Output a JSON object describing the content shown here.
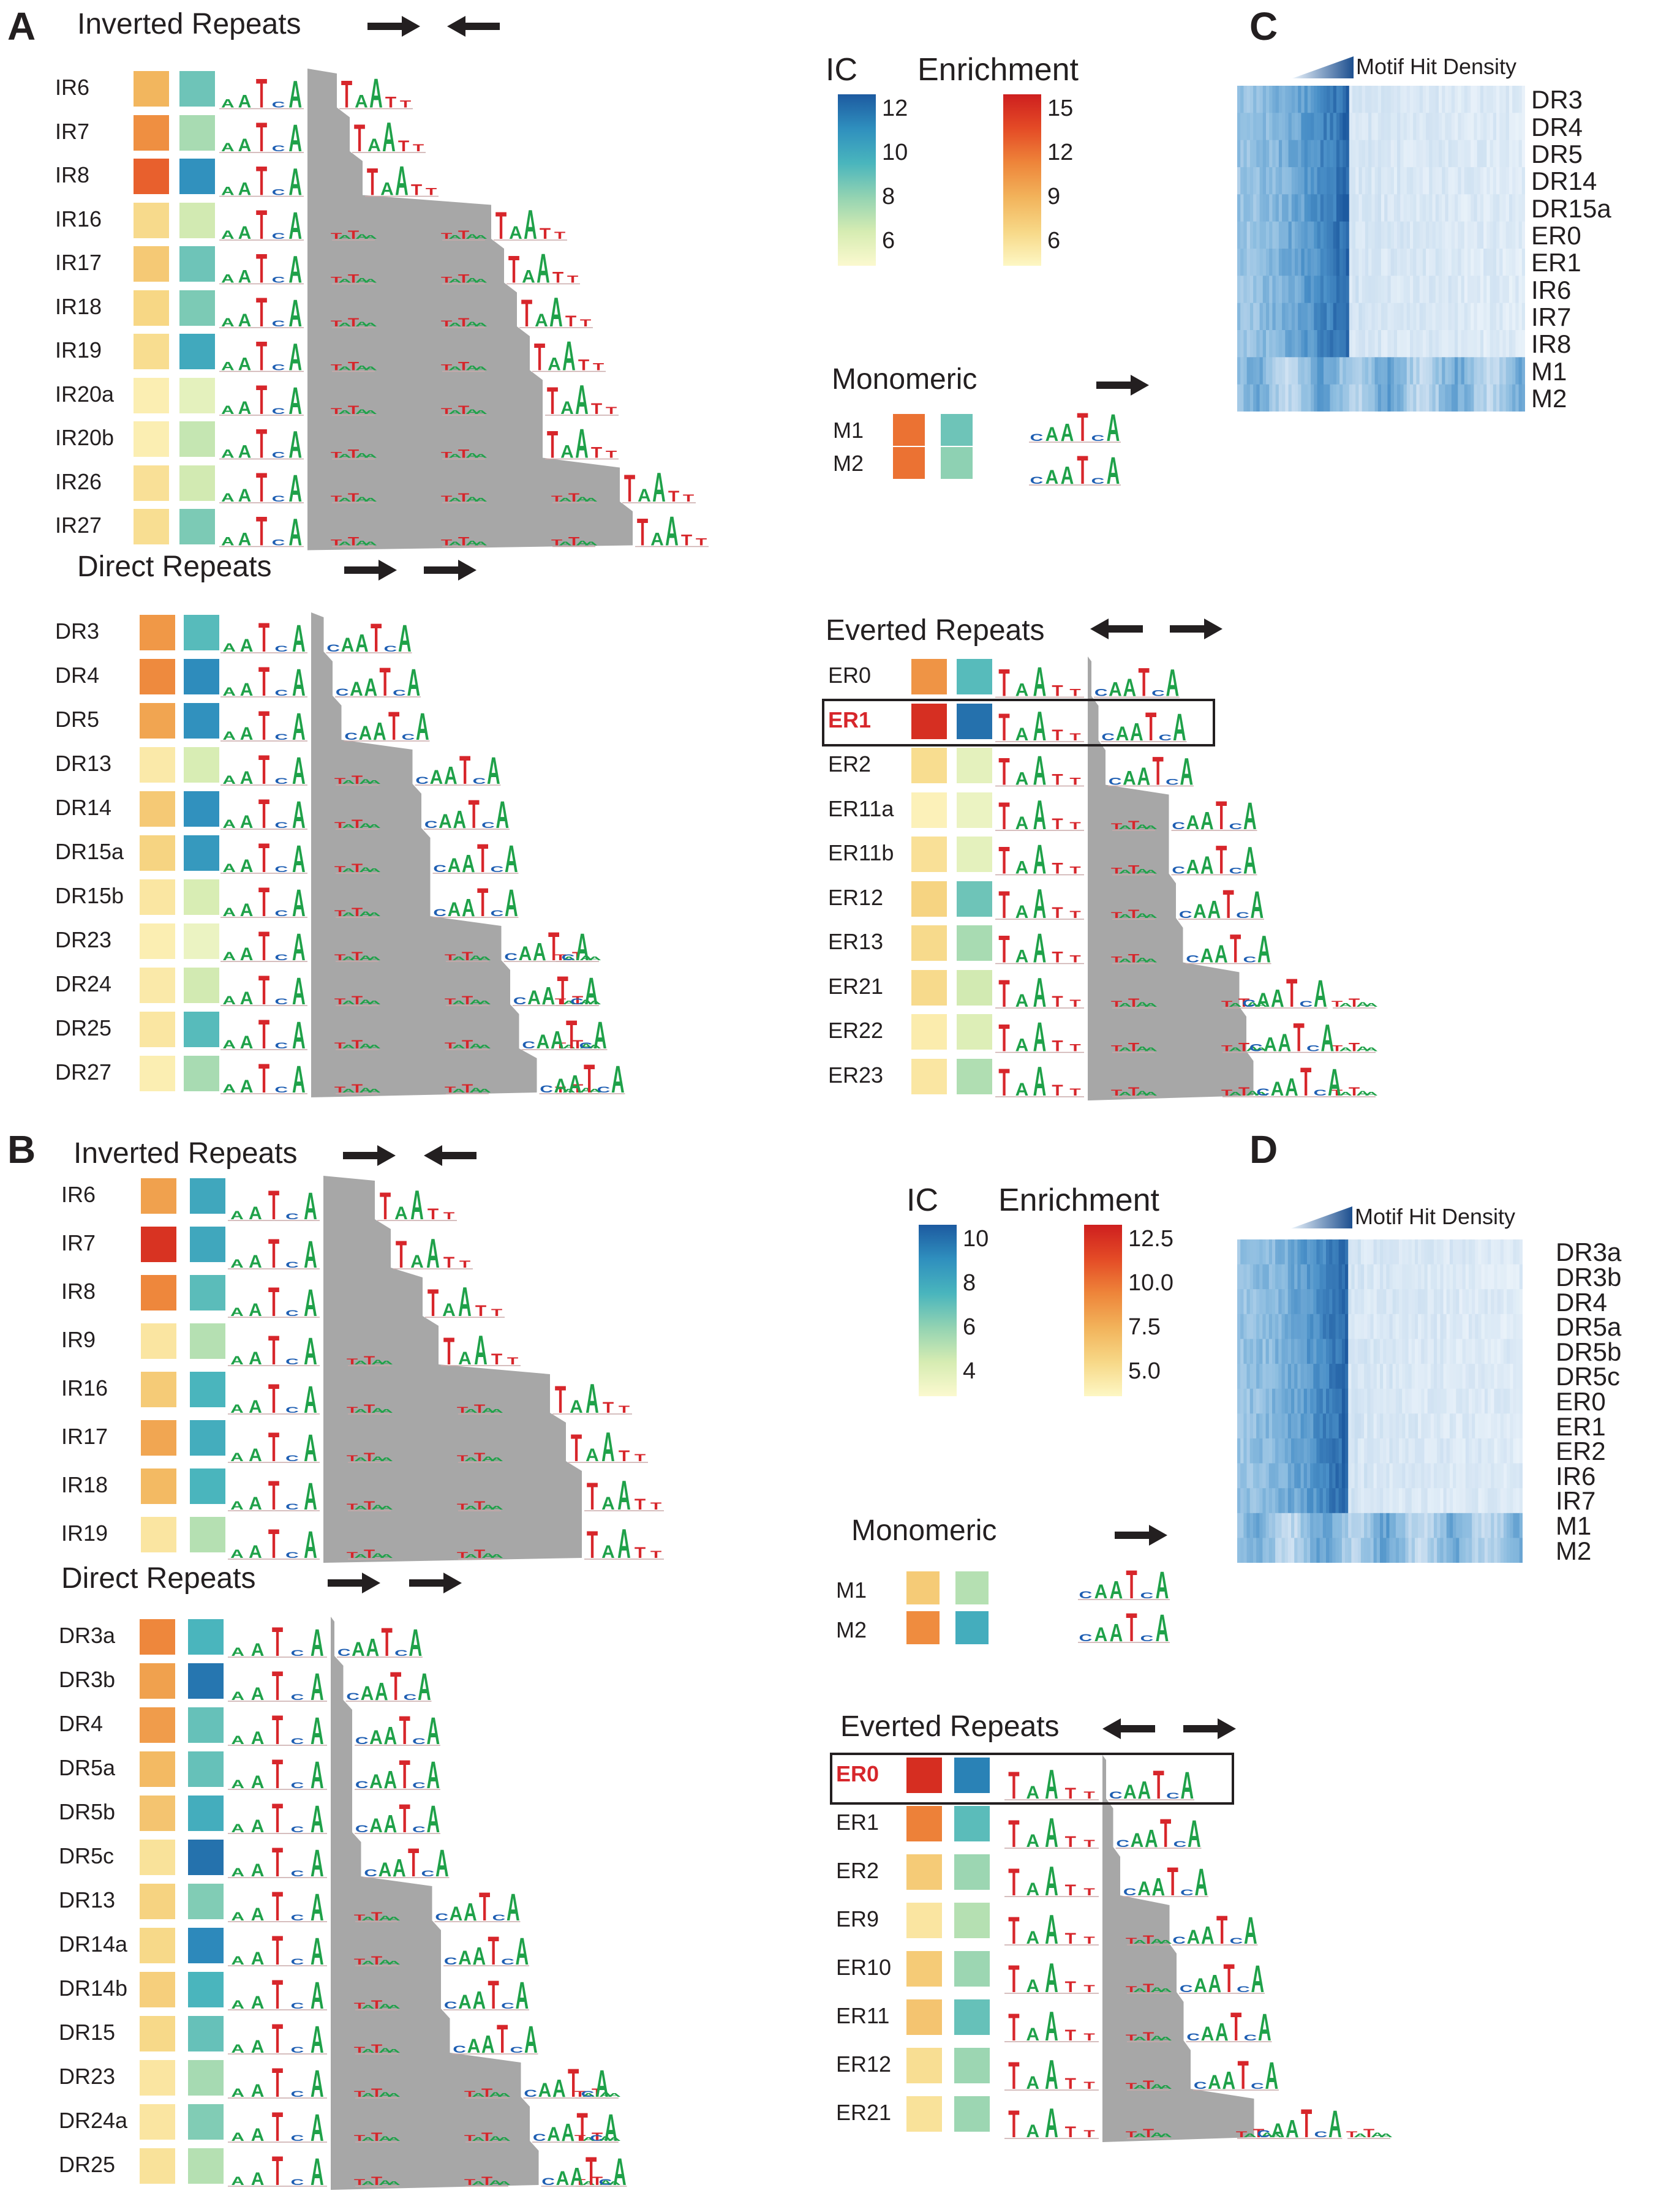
{
  "panels": {
    "A": {
      "label": "A",
      "inverted": {
        "title": "Inverted Repeats",
        "rows": [
          {
            "label": "IR6",
            "enrich": 8.2,
            "ic": 8.5,
            "spacer": 2
          },
          {
            "label": "IR7",
            "enrich": 10.5,
            "ic": 7.2,
            "spacer": 3
          },
          {
            "label": "IR8",
            "enrich": 12.8,
            "ic": 10.8,
            "spacer": 4
          },
          {
            "label": "IR16",
            "enrich": 5.5,
            "ic": 6.2,
            "spacer": 14
          },
          {
            "label": "IR17",
            "enrich": 6.8,
            "ic": 8.5,
            "spacer": 15
          },
          {
            "label": "IR18",
            "enrich": 5.8,
            "ic": 8.2,
            "spacer": 16
          },
          {
            "label": "IR19",
            "enrich": 5.3,
            "ic": 9.8,
            "spacer": 17
          },
          {
            "label": "IR20a",
            "enrich": 3.8,
            "ic": 5.5,
            "spacer": 18
          },
          {
            "label": "IR20b",
            "enrich": 3.8,
            "ic": 6.5,
            "spacer": 18
          },
          {
            "label": "IR26",
            "enrich": 5.0,
            "ic": 6.2,
            "spacer": 24
          },
          {
            "label": "IR27",
            "enrich": 5.2,
            "ic": 8.2,
            "spacer": 25
          }
        ]
      },
      "direct": {
        "title": "Direct Repeats",
        "rows": [
          {
            "label": "DR3",
            "enrich": 10.0,
            "ic": 9.0,
            "spacer": 1
          },
          {
            "label": "DR4",
            "enrich": 10.8,
            "ic": 11.0,
            "spacer": 2
          },
          {
            "label": "DR5",
            "enrich": 9.2,
            "ic": 10.8,
            "spacer": 3
          },
          {
            "label": "DR13",
            "enrich": 4.2,
            "ic": 6.0,
            "spacer": 11
          },
          {
            "label": "DR14",
            "enrich": 6.8,
            "ic": 10.8,
            "spacer": 12
          },
          {
            "label": "DR15a",
            "enrich": 6.0,
            "ic": 10.5,
            "spacer": 13
          },
          {
            "label": "DR15b",
            "enrich": 4.5,
            "ic": 6.0,
            "spacer": 13
          },
          {
            "label": "DR23",
            "enrich": 3.8,
            "ic": 5.2,
            "spacer": 21
          },
          {
            "label": "DR24",
            "enrich": 4.2,
            "ic": 6.2,
            "spacer": 22
          },
          {
            "label": "DR25",
            "enrich": 4.5,
            "ic": 9.0,
            "spacer": 23
          },
          {
            "label": "DR27",
            "enrich": 3.8,
            "ic": 7.2,
            "spacer": 25
          }
        ]
      },
      "everted": {
        "title": "Everted Repeats",
        "rows": [
          {
            "label": "ER0",
            "enrich": 10.2,
            "ic": 9.0,
            "spacer": 0
          },
          {
            "label": "ER1",
            "enrich": 15.5,
            "ic": 11.8,
            "spacer": 1,
            "highlight": true
          },
          {
            "label": "ER2",
            "enrich": 5.3,
            "ic": 5.5,
            "spacer": 2
          },
          {
            "label": "ER11a",
            "enrich": 3.5,
            "ic": 5.2,
            "spacer": 11
          },
          {
            "label": "ER11b",
            "enrich": 5.0,
            "ic": 5.5,
            "spacer": 11
          },
          {
            "label": "ER12",
            "enrich": 6.0,
            "ic": 8.5,
            "spacer": 12
          },
          {
            "label": "ER13",
            "enrich": 5.5,
            "ic": 7.2,
            "spacer": 13
          },
          {
            "label": "ER21",
            "enrich": 5.5,
            "ic": 6.2,
            "spacer": 21
          },
          {
            "label": "ER22",
            "enrich": 4.0,
            "ic": 5.8,
            "spacer": 22
          },
          {
            "label": "ER23",
            "enrich": 4.5,
            "ic": 7.0,
            "spacer": 23
          }
        ]
      },
      "monomeric": {
        "title": "Monomeric",
        "rows": [
          {
            "label": "M1",
            "enrich": 12.0,
            "ic": 8.5
          },
          {
            "label": "M2",
            "enrich": 12.0,
            "ic": 7.8
          }
        ]
      },
      "legend": {
        "ic_title": "IC",
        "ic_ticks": [
          "12",
          "10",
          "8",
          "6"
        ],
        "ic_range": [
          4.5,
          12.5
        ],
        "enrich_title": "Enrichment",
        "enrich_ticks": [
          "15",
          "12",
          "9",
          "6"
        ],
        "enrich_range": [
          3,
          16.5
        ]
      }
    },
    "B": {
      "label": "B",
      "inverted": {
        "title": "Inverted Repeats",
        "rows": [
          {
            "label": "IR6",
            "enrich": 9.0,
            "ic": 8.0,
            "spacer": 3
          },
          {
            "label": "IR7",
            "enrich": 12.8,
            "ic": 8.0,
            "spacer": 4
          },
          {
            "label": "IR8",
            "enrich": 10.0,
            "ic": 7.2,
            "spacer": 6
          },
          {
            "label": "IR9",
            "enrich": 5.8,
            "ic": 5.5,
            "spacer": 7
          },
          {
            "label": "IR16",
            "enrich": 7.2,
            "ic": 7.5,
            "spacer": 14
          },
          {
            "label": "IR17",
            "enrich": 8.8,
            "ic": 7.8,
            "spacer": 15
          },
          {
            "label": "IR18",
            "enrich": 8.0,
            "ic": 7.5,
            "spacer": 16
          },
          {
            "label": "IR19",
            "enrich": 5.8,
            "ic": 5.5,
            "spacer": 16
          }
        ]
      },
      "direct": {
        "title": "Direct Repeats",
        "rows": [
          {
            "label": "DR3a",
            "enrich": 10.0,
            "ic": 7.5,
            "spacer": 0
          },
          {
            "label": "DR3b",
            "enrich": 9.0,
            "ic": 9.5,
            "spacer": 1
          },
          {
            "label": "DR4",
            "enrich": 9.2,
            "ic": 7.0,
            "spacer": 2
          },
          {
            "label": "DR5a",
            "enrich": 8.0,
            "ic": 7.0,
            "spacer": 2
          },
          {
            "label": "DR5b",
            "enrich": 7.5,
            "ic": 7.8,
            "spacer": 2
          },
          {
            "label": "DR5c",
            "enrich": 6.0,
            "ic": 9.6,
            "spacer": 3
          },
          {
            "label": "DR13",
            "enrich": 6.8,
            "ic": 6.5,
            "spacer": 11
          },
          {
            "label": "DR14a",
            "enrich": 6.5,
            "ic": 9.0,
            "spacer": 12
          },
          {
            "label": "DR14b",
            "enrich": 7.0,
            "ic": 7.5,
            "spacer": 12
          },
          {
            "label": "DR15",
            "enrich": 6.5,
            "ic": 7.0,
            "spacer": 13
          },
          {
            "label": "DR23",
            "enrich": 5.8,
            "ic": 5.8,
            "spacer": 21
          },
          {
            "label": "DR24a",
            "enrich": 5.8,
            "ic": 6.5,
            "spacer": 22
          },
          {
            "label": "DR25",
            "enrich": 6.0,
            "ic": 5.5,
            "spacer": 23
          }
        ]
      },
      "everted": {
        "title": "Everted Repeats",
        "rows": [
          {
            "label": "ER0",
            "enrich": 13.0,
            "ic": 9.2,
            "spacer": 0,
            "highlight": true
          },
          {
            "label": "ER1",
            "enrich": 10.2,
            "ic": 7.2,
            "spacer": 1
          },
          {
            "label": "ER2",
            "enrich": 7.2,
            "ic": 6.0,
            "spacer": 2
          },
          {
            "label": "ER9",
            "enrich": 5.8,
            "ic": 5.5,
            "spacer": 9
          },
          {
            "label": "ER10",
            "enrich": 7.2,
            "ic": 6.0,
            "spacer": 10
          },
          {
            "label": "ER11",
            "enrich": 7.5,
            "ic": 7.0,
            "spacer": 11
          },
          {
            "label": "ER12",
            "enrich": 6.2,
            "ic": 6.0,
            "spacer": 12
          },
          {
            "label": "ER21",
            "enrich": 6.0,
            "ic": 6.0,
            "spacer": 21
          }
        ]
      },
      "monomeric": {
        "title": "Monomeric",
        "rows": [
          {
            "label": "M1",
            "enrich": 7.2,
            "ic": 5.5
          },
          {
            "label": "M2",
            "enrich": 9.8,
            "ic": 7.8
          }
        ]
      },
      "legend": {
        "ic_title": "IC",
        "ic_ticks": [
          "10",
          "8",
          "6",
          "4"
        ],
        "ic_range": [
          3.5,
          10.2
        ],
        "enrich_title": "Enrichment",
        "enrich_ticks": [
          "12.5",
          "10.0",
          "7.5",
          "5.0"
        ],
        "enrich_range": [
          4.8,
          13.6
        ]
      }
    },
    "C": {
      "label": "C",
      "legend": "Motif Hit Density",
      "rows": [
        "DR3",
        "DR4",
        "DR5",
        "DR14",
        "DR15a",
        "ER0",
        "ER1",
        "IR6",
        "IR7",
        "IR8",
        "M1",
        "M2"
      ]
    },
    "D": {
      "label": "D",
      "legend": "Motif Hit Density",
      "rows": [
        "DR3a",
        "DR3b",
        "DR4",
        "DR5a",
        "DR5b",
        "DR5c",
        "ER0",
        "ER1",
        "ER2",
        "IR6",
        "IR7",
        "M1",
        "M2"
      ]
    }
  },
  "colors": {
    "ic_scale": [
      "#fbf9cf",
      "#d6ecb2",
      "#93d3b2",
      "#49b5bd",
      "#2f8fbe",
      "#1d5aa0"
    ],
    "enrich_scale": [
      "#fdf7c4",
      "#f7d887",
      "#f2b35b",
      "#ee853a",
      "#e44b26",
      "#ce1f1f"
    ],
    "shade": "#a7a7a7",
    "letter_A": "#1fa149",
    "letter_C": "#1f5fb3",
    "letter_G": "#f2b21b",
    "letter_T": "#d7262b",
    "text": "#231f20"
  }
}
